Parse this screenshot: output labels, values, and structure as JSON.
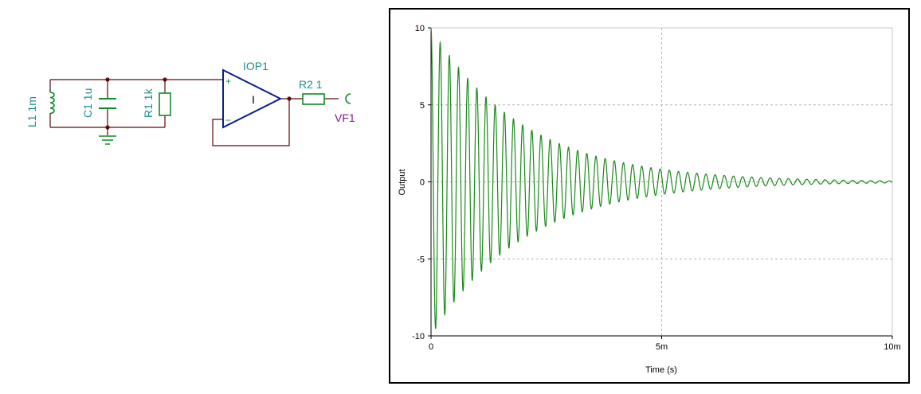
{
  "schematic": {
    "components": {
      "l1": "L1 1m",
      "c1": "C1 1u",
      "r1": "R1 1k",
      "iop1": "IOP1",
      "r2": "R2 1",
      "vf1": "VF1",
      "opamp_plus": "+",
      "opamp_minus": "−",
      "opamp_symbol": "I"
    },
    "colors": {
      "wire": "#5b0b0b",
      "component": "#0f8a2a",
      "label": "#1f8f8f",
      "opamp": "#0b1e8a",
      "meter": "#7b1e8a"
    }
  },
  "chart_data": {
    "type": "line",
    "xlabel": "Time (s)",
    "ylabel": "Output",
    "xlim": [
      0,
      0.01
    ],
    "ylim": [
      -10,
      10
    ],
    "xticks": [
      "0",
      "5m",
      "10m"
    ],
    "yticks": [
      "10",
      "5",
      "0",
      "-5",
      "-10"
    ],
    "grid": true,
    "series": [
      {
        "color": "#1a8a1a",
        "model": "damped cosine",
        "amplitude": 10,
        "frequency_hz": 5033,
        "time_constant_s": 0.002,
        "x_start": 0,
        "x_end": 0.01
      }
    ]
  }
}
